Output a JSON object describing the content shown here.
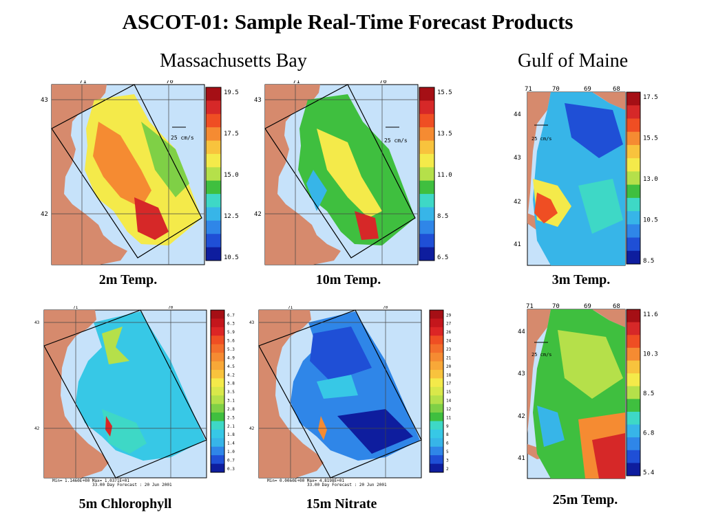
{
  "title": "ASCOT-01: Sample Real-Time Forecast Products",
  "regions": {
    "mass_bay": "Massachusetts Bay",
    "gulf_of_maine": "Gulf of Maine"
  },
  "panels": [
    {
      "id": "p1",
      "caption": "2m Temp.",
      "lon_labels": [
        "71",
        "70"
      ],
      "lat_labels": [
        "43",
        "42"
      ],
      "vector_label": "25 cm/s",
      "colorbar_labels": [
        "19.5",
        "17.5",
        "15.0",
        "12.5",
        "10.5"
      ],
      "colors": [
        "#a50f15",
        "#d62828",
        "#ef4e23",
        "#f58b32",
        "#f8c33d",
        "#f4ea4a",
        "#b5e04a",
        "#3fbf3f",
        "#3ed8c6",
        "#37b5e8",
        "#2f86e8",
        "#1f4fd6",
        "#0e1d9e"
      ]
    },
    {
      "id": "p2",
      "caption": "10m Temp.",
      "lon_labels": [
        "71",
        "70"
      ],
      "lat_labels": [
        "43",
        "42"
      ],
      "vector_label": "25 cm/s",
      "colorbar_labels": [
        "15.5",
        "13.5",
        "11.0",
        "8.5",
        "6.5"
      ],
      "colors": [
        "#a50f15",
        "#d62828",
        "#ef4e23",
        "#f58b32",
        "#f8c33d",
        "#f4ea4a",
        "#b5e04a",
        "#3fbf3f",
        "#3ed8c6",
        "#37b5e8",
        "#2f86e8",
        "#1f4fd6",
        "#0e1d9e"
      ]
    },
    {
      "id": "p3",
      "caption": "3m Temp.",
      "lon_labels": [
        "71",
        "70",
        "69",
        "68"
      ],
      "lat_labels": [
        "44",
        "43",
        "42",
        "41"
      ],
      "vector_label": "25 cm/s",
      "colorbar_labels": [
        "17.5",
        "15.5",
        "13.0",
        "10.5",
        "8.5"
      ],
      "colors": [
        "#a50f15",
        "#d62828",
        "#ef4e23",
        "#f58b32",
        "#f8c33d",
        "#f4ea4a",
        "#b5e04a",
        "#3fbf3f",
        "#3ed8c6",
        "#37b5e8",
        "#2f86e8",
        "#1f4fd6",
        "#0e1d9e"
      ]
    },
    {
      "id": "p4",
      "caption": "5m Chlorophyll",
      "lon_labels": [
        "71",
        "70"
      ],
      "lat_labels": [
        "43",
        "42"
      ],
      "minmax": "Min= 1.1460E+00  Max= 1.0371E+01",
      "forecast": "33.00 Day Forecast : 20 Jun 2001",
      "colorbar_labels": [
        "6.7",
        "6.3",
        "5.9",
        "5.6",
        "5.3",
        "4.9",
        "4.5",
        "4.2",
        "3.8",
        "3.5",
        "3.1",
        "2.8",
        "2.5",
        "2.1",
        "1.8",
        "1.4",
        "1.0",
        "0.7",
        "0.3"
      ],
      "colors": [
        "#a50f15",
        "#c4161c",
        "#dc2525",
        "#ef4e23",
        "#f36e2b",
        "#f58b32",
        "#f8a838",
        "#f8c33d",
        "#f4ea4a",
        "#d9e84a",
        "#b5e04a",
        "#7fd046",
        "#3fbf3f",
        "#3ed8c6",
        "#37c8e6",
        "#37b5e8",
        "#2f86e8",
        "#1f4fd6",
        "#0e1d9e"
      ]
    },
    {
      "id": "p5",
      "caption": "15m Nitrate",
      "lon_labels": [
        "71",
        "70"
      ],
      "lat_labels": [
        "43",
        "42"
      ],
      "minmax": "Min= 0.0060E+00  Max= 4.8198E+01",
      "forecast": "33.00 Day Forecast : 20 Jun 2001",
      "colorbar_labels": [
        "29",
        "27",
        "26",
        "24",
        "23",
        "21",
        "20",
        "18",
        "17",
        "15",
        "14",
        "12",
        "11",
        "9",
        "8",
        "6",
        "5",
        "3",
        "2"
      ],
      "colors": [
        "#a50f15",
        "#c4161c",
        "#dc2525",
        "#ef4e23",
        "#f36e2b",
        "#f58b32",
        "#f8a838",
        "#f8c33d",
        "#f4ea4a",
        "#d9e84a",
        "#b5e04a",
        "#7fd046",
        "#3fbf3f",
        "#3ed8c6",
        "#37c8e6",
        "#37b5e8",
        "#2f86e8",
        "#1f4fd6",
        "#0e1d9e"
      ]
    },
    {
      "id": "p6",
      "caption": "25m Temp.",
      "lon_labels": [
        "71",
        "70",
        "69",
        "68"
      ],
      "lat_labels": [
        "44",
        "43",
        "42",
        "41"
      ],
      "vector_label": "25 cm/s",
      "colorbar_labels": [
        "11.6",
        "10.3",
        "8.5",
        "6.8",
        "5.4"
      ],
      "colors": [
        "#a50f15",
        "#d62828",
        "#ef4e23",
        "#f58b32",
        "#f8c33d",
        "#f4ea4a",
        "#b5e04a",
        "#3fbf3f",
        "#3ed8c6",
        "#37b5e8",
        "#2f86e8",
        "#1f4fd6",
        "#0e1d9e"
      ]
    }
  ]
}
